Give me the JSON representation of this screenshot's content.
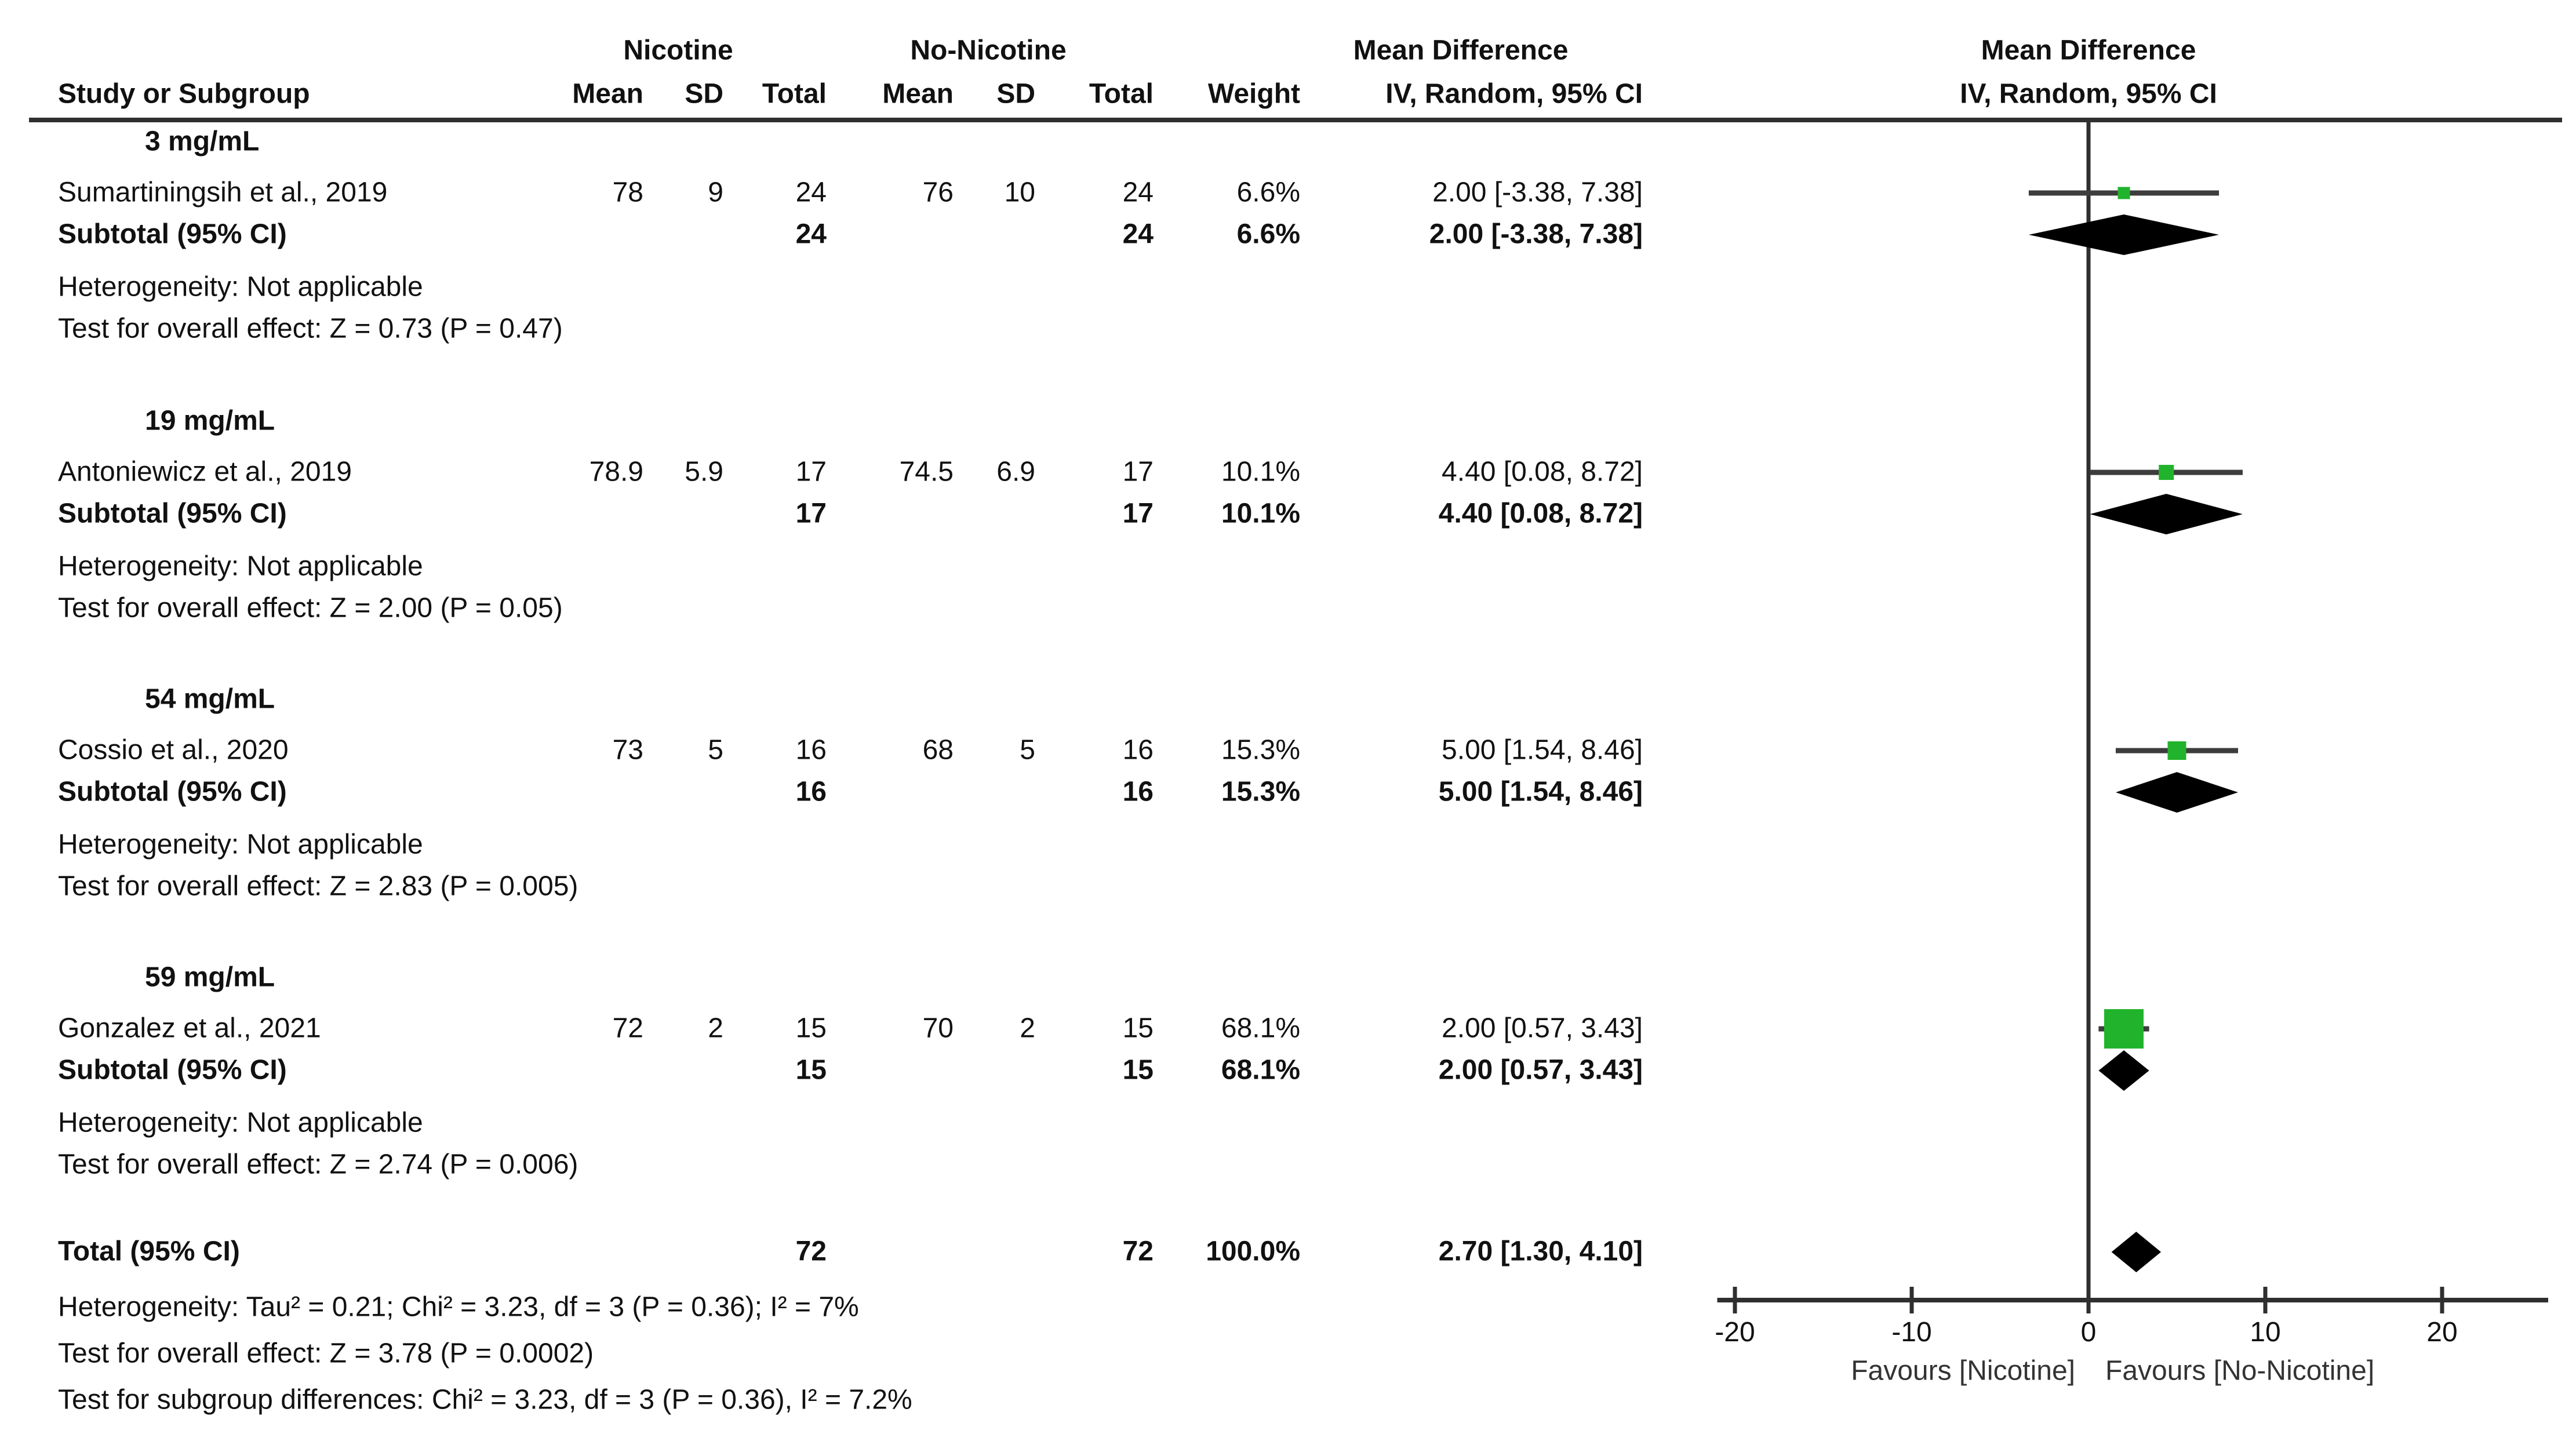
{
  "header": {
    "group_nicotine": "Nicotine",
    "group_no_nicotine": "No-Nicotine",
    "mean_difference": "Mean Difference",
    "plot_mean_difference": "Mean Difference",
    "col_study": "Study or Subgroup",
    "col_mean": "Mean",
    "col_sd": "SD",
    "col_total": "Total",
    "col_weight": "Weight",
    "col_iv_ci": "IV, Random, 95% CI",
    "plot_iv_ci": "IV, Random, 95% CI"
  },
  "colors": {
    "marker_green": "#22b32c",
    "diamond_black": "#000000",
    "ci_line": "#3d3d3d",
    "axis": "#2f2f2f",
    "text": "#111111",
    "favours_text": "#333333"
  },
  "chart_data": {
    "type": "forest",
    "effect_measure": "Mean Difference, IV, Random, 95% CI",
    "x_ticks": [
      -20,
      -10,
      0,
      10,
      20
    ],
    "xlim": [
      -21,
      26
    ],
    "favours_left": "Favours [Nicotine]",
    "favours_right": "Favours [No-Nicotine]",
    "subgroups": [
      {
        "label": "3 mg/mL",
        "studies": [
          {
            "name": "Sumartiningsih et al., 2019",
            "nicotine": {
              "mean": "78",
              "sd": "9",
              "total": "24"
            },
            "no_nicotine": {
              "mean": "76",
              "sd": "10",
              "total": "24"
            },
            "weight": "6.6%",
            "weight_pct": 6.6,
            "ci_text": "2.00 [-3.38, 7.38]",
            "md": 2.0,
            "ci_low": -3.38,
            "ci_high": 7.38
          }
        ],
        "subtotal": {
          "label": "Subtotal (95% CI)",
          "total1": "24",
          "total2": "24",
          "weight": "6.6%",
          "ci_text": "2.00 [-3.38, 7.38]",
          "md": 2.0,
          "ci_low": -3.38,
          "ci_high": 7.38
        },
        "heterogeneity": "Heterogeneity: Not applicable",
        "overall_effect": "Test for overall effect: Z = 0.73 (P = 0.47)"
      },
      {
        "label": "19 mg/mL",
        "studies": [
          {
            "name": "Antoniewicz et al., 2019",
            "nicotine": {
              "mean": "78.9",
              "sd": "5.9",
              "total": "17"
            },
            "no_nicotine": {
              "mean": "74.5",
              "sd": "6.9",
              "total": "17"
            },
            "weight": "10.1%",
            "weight_pct": 10.1,
            "ci_text": "4.40 [0.08, 8.72]",
            "md": 4.4,
            "ci_low": 0.08,
            "ci_high": 8.72
          }
        ],
        "subtotal": {
          "label": "Subtotal (95% CI)",
          "total1": "17",
          "total2": "17",
          "weight": "10.1%",
          "ci_text": "4.40 [0.08, 8.72]",
          "md": 4.4,
          "ci_low": 0.08,
          "ci_high": 8.72
        },
        "heterogeneity": "Heterogeneity: Not applicable",
        "overall_effect": "Test for overall effect: Z = 2.00 (P = 0.05)"
      },
      {
        "label": "54 mg/mL",
        "studies": [
          {
            "name": "Cossio et al., 2020",
            "nicotine": {
              "mean": "73",
              "sd": "5",
              "total": "16"
            },
            "no_nicotine": {
              "mean": "68",
              "sd": "5",
              "total": "16"
            },
            "weight": "15.3%",
            "weight_pct": 15.3,
            "ci_text": "5.00 [1.54, 8.46]",
            "md": 5.0,
            "ci_low": 1.54,
            "ci_high": 8.46
          }
        ],
        "subtotal": {
          "label": "Subtotal (95% CI)",
          "total1": "16",
          "total2": "16",
          "weight": "15.3%",
          "ci_text": "5.00 [1.54, 8.46]",
          "md": 5.0,
          "ci_low": 1.54,
          "ci_high": 8.46
        },
        "heterogeneity": "Heterogeneity: Not applicable",
        "overall_effect": "Test for overall effect: Z = 2.83 (P = 0.005)"
      },
      {
        "label": "59 mg/mL",
        "studies": [
          {
            "name": "Gonzalez et al., 2021",
            "nicotine": {
              "mean": "72",
              "sd": "2",
              "total": "15"
            },
            "no_nicotine": {
              "mean": "70",
              "sd": "2",
              "total": "15"
            },
            "weight": "68.1%",
            "weight_pct": 68.1,
            "ci_text": "2.00 [0.57, 3.43]",
            "md": 2.0,
            "ci_low": 0.57,
            "ci_high": 3.43
          }
        ],
        "subtotal": {
          "label": "Subtotal (95% CI)",
          "total1": "15",
          "total2": "15",
          "weight": "68.1%",
          "ci_text": "2.00 [0.57, 3.43]",
          "md": 2.0,
          "ci_low": 0.57,
          "ci_high": 3.43
        },
        "heterogeneity": "Heterogeneity: Not applicable",
        "overall_effect": "Test for overall effect: Z = 2.74 (P = 0.006)"
      }
    ],
    "total": {
      "label": "Total (95% CI)",
      "total1": "72",
      "total2": "72",
      "weight": "100.0%",
      "ci_text": "2.70 [1.30, 4.10]",
      "md": 2.7,
      "ci_low": 1.3,
      "ci_high": 4.1
    },
    "footer": [
      "Heterogeneity: Tau² = 0.21; Chi² = 3.23, df = 3 (P = 0.36); I² = 7%",
      "Test for overall effect: Z = 3.78 (P = 0.0002)",
      "Test for subgroup differences: Chi² = 3.23, df = 3 (P = 0.36), I² = 7.2%"
    ]
  }
}
